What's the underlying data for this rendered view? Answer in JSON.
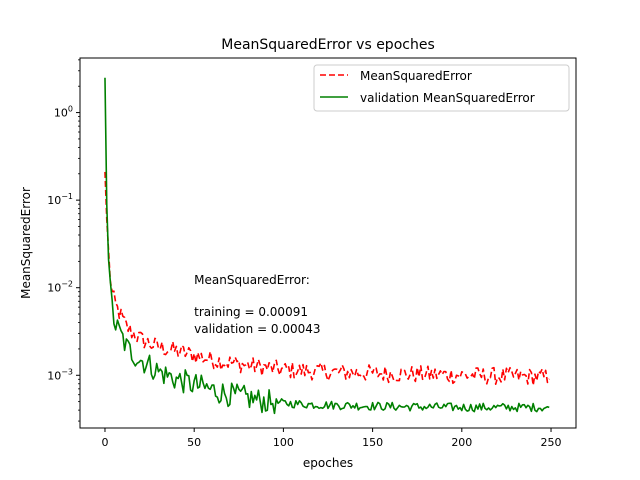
{
  "chart_data": {
    "type": "line",
    "title": "MeanSquaredError vs epoches",
    "xlabel": "epoches",
    "ylabel": "MeanSquaredError",
    "xlim": [
      -14,
      264
    ],
    "ylim": [
      0.00025,
      4.2
    ],
    "yscale": "log",
    "grid": false,
    "legend": "top-right",
    "x_ticks": [
      0,
      50,
      100,
      150,
      200,
      250
    ],
    "y_ticks": [
      {
        "value": 1,
        "base": "10",
        "exp": "0"
      },
      {
        "value": 0.1,
        "base": "10",
        "exp": "−1"
      },
      {
        "value": 0.01,
        "base": "10",
        "exp": "−2"
      },
      {
        "value": 0.001,
        "base": "10",
        "exp": "−3"
      }
    ],
    "epochs": 250,
    "series": [
      {
        "name": "MeanSquaredError",
        "color": "#ff0000",
        "style": "dashed",
        "anchors": [
          [
            0,
            0.21
          ],
          [
            1,
            0.06
          ],
          [
            2,
            0.025
          ],
          [
            3,
            0.013
          ],
          [
            4,
            0.0085
          ],
          [
            6,
            0.0062
          ],
          [
            8,
            0.0052
          ],
          [
            10,
            0.0043
          ],
          [
            12,
            0.0036
          ],
          [
            15,
            0.0031
          ],
          [
            20,
            0.0026
          ],
          [
            25,
            0.0023
          ],
          [
            30,
            0.0021
          ],
          [
            40,
            0.0019
          ],
          [
            50,
            0.0017
          ],
          [
            60,
            0.0015
          ],
          [
            70,
            0.0014
          ],
          [
            80,
            0.0013
          ],
          [
            100,
            0.00115
          ],
          [
            130,
            0.00108
          ],
          [
            160,
            0.00104
          ],
          [
            200,
            0.001
          ],
          [
            249,
            0.00095
          ]
        ],
        "noise": 0.1,
        "final": 0.00091
      },
      {
        "name": "validation MeanSquaredError",
        "color": "#008000",
        "style": "solid",
        "anchors": [
          [
            0,
            2.5
          ],
          [
            1,
            0.09
          ],
          [
            2,
            0.025
          ],
          [
            3,
            0.009
          ],
          [
            4,
            0.006
          ],
          [
            5,
            0.0045
          ],
          [
            6,
            0.0037
          ],
          [
            8,
            0.0031
          ],
          [
            10,
            0.0026
          ],
          [
            12,
            0.0021
          ],
          [
            15,
            0.0018
          ],
          [
            20,
            0.0015
          ],
          [
            25,
            0.0013
          ],
          [
            30,
            0.0011
          ],
          [
            40,
            0.0009
          ],
          [
            50,
            0.00078
          ],
          [
            60,
            0.00068
          ],
          [
            70,
            0.0006
          ],
          [
            80,
            0.00055
          ],
          [
            90,
            0.0005
          ],
          [
            100,
            0.00048
          ],
          [
            120,
            0.00046
          ],
          [
            140,
            0.00045
          ],
          [
            160,
            0.00044
          ],
          [
            200,
            0.00043
          ],
          [
            249,
            0.00043
          ]
        ],
        "noise": 0.14,
        "noise_decay_after": 95,
        "final": 0.00043
      }
    ],
    "annotation": {
      "title": "MeanSquaredError:",
      "training": "training = 0.00091",
      "validation": "validation = 0.00043",
      "x": 50,
      "y": 0.011
    }
  }
}
